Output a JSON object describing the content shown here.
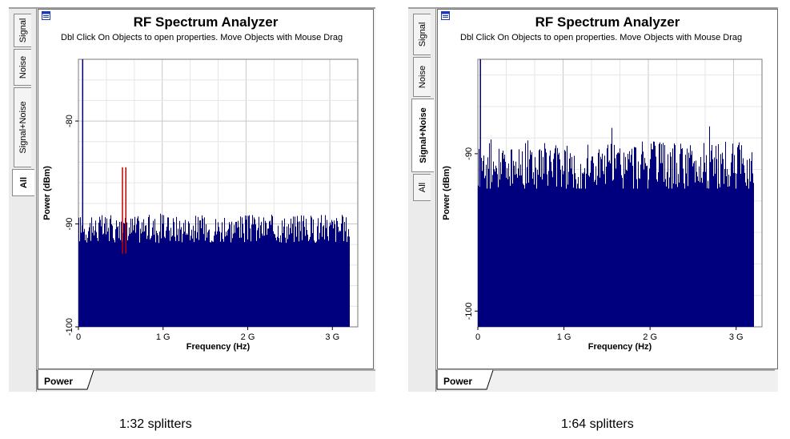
{
  "panels": [
    {
      "window_title": "RF Spectrum Analyzer",
      "subtitle": "Dbl Click On Objects to open properties.  Move Objects with Mouse Drag",
      "side_tabs": [
        "Signal",
        "Noise",
        "Signal+Noise",
        "All"
      ],
      "active_side_tab": "All",
      "bottom_tab": "Power",
      "caption": "1:32 splitters",
      "chart_data": {
        "type": "bar",
        "title": "RF Spectrum Analyzer",
        "xlabel": "Frequency (Hz)",
        "ylabel": "Power (dBm)",
        "xlim": [
          0,
          3300000000.0
        ],
        "ylim": [
          -100,
          -74
        ],
        "x_ticks": [
          "0",
          "1 G",
          "2 G",
          "3 G"
        ],
        "y_ticks": [
          "-80",
          "-90",
          "-100"
        ],
        "y_tick_values": [
          -80,
          -90,
          -100
        ],
        "grid": true,
        "series": [
          {
            "color": "#00007f",
            "x_range": [
              0,
              3200000000.0
            ],
            "baseline_dBm": -100,
            "floor_dBm": -90.9,
            "peak_spread_dB": 1.4,
            "carrier_x": 50000000.0,
            "carrier_dBm": -74
          },
          {
            "color": "#c00000",
            "x": [
              520000000.0,
              560000000.0
            ],
            "values": [
              -84.5,
              -84.5
            ]
          }
        ]
      }
    },
    {
      "window_title": "RF Spectrum Analyzer",
      "subtitle": "Dbl Click On Objects to open properties.  Move Objects with Mouse Drag",
      "side_tabs": [
        "Signal",
        "Noise",
        "Signal+Noise",
        "All"
      ],
      "active_side_tab": "Signal+Noise",
      "bottom_tab": "Power",
      "caption": "1:64 splitters",
      "chart_data": {
        "type": "bar",
        "title": "RF Spectrum Analyzer",
        "xlabel": "Frequency (Hz)",
        "ylabel": "Power (dBm)",
        "xlim": [
          0,
          3300000000.0
        ],
        "ylim": [
          -101,
          -84
        ],
        "x_ticks": [
          "0",
          "1 G",
          "2 G",
          "3 G"
        ],
        "y_ticks": [
          "-90",
          "-100"
        ],
        "y_tick_values": [
          -90,
          -100
        ],
        "grid": true,
        "series": [
          {
            "color": "#00007f",
            "x_range": [
              0,
              3200000000.0
            ],
            "baseline_dBm": -101,
            "floor_dBm": -91.3,
            "peak_spread_dB": 1.6,
            "carrier_x": 30000000.0,
            "carrier_dBm": -84
          }
        ]
      }
    }
  ]
}
